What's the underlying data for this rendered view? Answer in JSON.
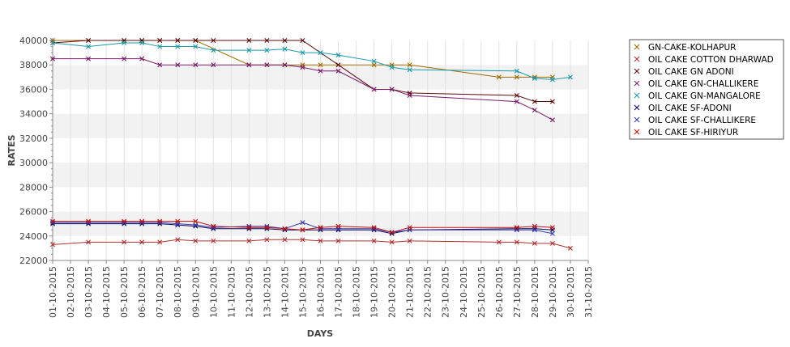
{
  "chart_data": {
    "type": "line",
    "title": "",
    "xlabel": "DAYS",
    "ylabel": "RATES",
    "ylim": [
      22000,
      40000
    ],
    "yticks": [
      22000,
      24000,
      26000,
      28000,
      30000,
      32000,
      34000,
      36000,
      38000,
      40000
    ],
    "grid": "alternating horizontal bands",
    "legend_position": "right",
    "categories": [
      "01-10-2015",
      "02-10-2015",
      "03-10-2015",
      "04-10-2015",
      "05-10-2015",
      "06-10-2015",
      "07-10-2015",
      "08-10-2015",
      "09-10-2015",
      "10-10-2015",
      "11-10-2015",
      "12-10-2015",
      "13-10-2015",
      "14-10-2015",
      "15-10-2015",
      "16-10-2015",
      "17-10-2015",
      "18-10-2015",
      "19-10-2015",
      "20-10-2015",
      "21-10-2015",
      "22-10-2015",
      "23-10-2015",
      "24-10-2015",
      "25-10-2015",
      "26-10-2015",
      "27-10-2015",
      "28-10-2015",
      "29-10-2015",
      "30-10-2015",
      "31-10-2015"
    ],
    "series": [
      {
        "name": "GN-CAKE-KOLHAPUR",
        "color": "#a06a00",
        "x": [
          "01-10-2015",
          "03-10-2015",
          "05-10-2015",
          "06-10-2015",
          "07-10-2015",
          "08-10-2015",
          "09-10-2015",
          "12-10-2015",
          "13-10-2015",
          "14-10-2015",
          "15-10-2015",
          "16-10-2015",
          "19-10-2015",
          "20-10-2015",
          "21-10-2015",
          "26-10-2015",
          "27-10-2015",
          "28-10-2015",
          "29-10-2015"
        ],
        "values": [
          40000,
          40000,
          40000,
          40000,
          40000,
          40000,
          40000,
          38000,
          38000,
          38000,
          38000,
          38000,
          38000,
          38000,
          38000,
          37000,
          37000,
          37000,
          37000
        ]
      },
      {
        "name": "OIL CAKE COTTON DHARWAD",
        "color": "#b03030",
        "x": [
          "01-10-2015",
          "03-10-2015",
          "05-10-2015",
          "06-10-2015",
          "07-10-2015",
          "08-10-2015",
          "09-10-2015",
          "10-10-2015",
          "12-10-2015",
          "13-10-2015",
          "14-10-2015",
          "15-10-2015",
          "16-10-2015",
          "17-10-2015",
          "19-10-2015",
          "20-10-2015",
          "21-10-2015",
          "26-10-2015",
          "27-10-2015",
          "28-10-2015",
          "29-10-2015",
          "30-10-2015"
        ],
        "values": [
          23300,
          23500,
          23500,
          23500,
          23500,
          23700,
          23600,
          23600,
          23600,
          23700,
          23700,
          23700,
          23600,
          23600,
          23600,
          23500,
          23600,
          23500,
          23500,
          23400,
          23400,
          23000
        ]
      },
      {
        "name": "OIL CAKE GN ADONI",
        "color": "#5a0a0a",
        "x": [
          "01-10-2015",
          "03-10-2015",
          "05-10-2015",
          "06-10-2015",
          "07-10-2015",
          "08-10-2015",
          "09-10-2015",
          "10-10-2015",
          "12-10-2015",
          "13-10-2015",
          "14-10-2015",
          "15-10-2015",
          "16-10-2015",
          "17-10-2015",
          "19-10-2015",
          "20-10-2015",
          "21-10-2015",
          "27-10-2015",
          "28-10-2015",
          "29-10-2015"
        ],
        "values": [
          39800,
          40000,
          40000,
          40000,
          40000,
          40000,
          40000,
          40000,
          40000,
          40000,
          40000,
          40000,
          39000,
          38000,
          36000,
          36000,
          35700,
          35500,
          35000,
          35000
        ]
      },
      {
        "name": "OIL CAKE GN-CHALLIKERE",
        "color": "#7a1a6a",
        "x": [
          "01-10-2015",
          "03-10-2015",
          "05-10-2015",
          "06-10-2015",
          "07-10-2015",
          "08-10-2015",
          "09-10-2015",
          "10-10-2015",
          "12-10-2015",
          "13-10-2015",
          "14-10-2015",
          "15-10-2015",
          "16-10-2015",
          "17-10-2015",
          "19-10-2015",
          "20-10-2015",
          "21-10-2015",
          "27-10-2015",
          "28-10-2015",
          "29-10-2015"
        ],
        "values": [
          38500,
          38500,
          38500,
          38500,
          38000,
          38000,
          38000,
          38000,
          38000,
          38000,
          38000,
          37800,
          37500,
          37500,
          36000,
          36000,
          35500,
          35000,
          34300,
          33500
        ]
      },
      {
        "name": "OIL CAKE GN-MANGALORE",
        "color": "#1a9aaa",
        "x": [
          "01-10-2015",
          "03-10-2015",
          "05-10-2015",
          "06-10-2015",
          "07-10-2015",
          "08-10-2015",
          "09-10-2015",
          "10-10-2015",
          "12-10-2015",
          "13-10-2015",
          "14-10-2015",
          "15-10-2015",
          "16-10-2015",
          "17-10-2015",
          "19-10-2015",
          "20-10-2015",
          "21-10-2015",
          "27-10-2015",
          "28-10-2015",
          "29-10-2015",
          "30-10-2015"
        ],
        "values": [
          39800,
          39500,
          39800,
          39800,
          39500,
          39500,
          39500,
          39200,
          39200,
          39200,
          39300,
          39000,
          39000,
          38800,
          38300,
          37800,
          37600,
          37500,
          36900,
          36800,
          37000
        ]
      },
      {
        "name": "OIL CAKE SF-ADONI",
        "color": "#0a0a5a",
        "x": [
          "01-10-2015",
          "03-10-2015",
          "05-10-2015",
          "06-10-2015",
          "07-10-2015",
          "08-10-2015",
          "09-10-2015",
          "10-10-2015",
          "12-10-2015",
          "13-10-2015",
          "14-10-2015",
          "15-10-2015",
          "16-10-2015",
          "17-10-2015",
          "19-10-2015",
          "20-10-2015",
          "21-10-2015",
          "27-10-2015",
          "28-10-2015",
          "29-10-2015"
        ],
        "values": [
          25000,
          25000,
          25000,
          25000,
          25000,
          24900,
          24800,
          24600,
          24600,
          24600,
          24500,
          24500,
          24500,
          24500,
          24500,
          24200,
          24500,
          24600,
          24600,
          24500
        ]
      },
      {
        "name": "OIL CAKE SF-CHALLIKERE",
        "color": "#3a3ab0",
        "x": [
          "01-10-2015",
          "03-10-2015",
          "05-10-2015",
          "06-10-2015",
          "07-10-2015",
          "08-10-2015",
          "09-10-2015",
          "10-10-2015",
          "12-10-2015",
          "13-10-2015",
          "14-10-2015",
          "15-10-2015",
          "16-10-2015",
          "17-10-2015",
          "19-10-2015",
          "20-10-2015",
          "21-10-2015",
          "27-10-2015",
          "28-10-2015",
          "29-10-2015"
        ],
        "values": [
          25100,
          25100,
          25100,
          25100,
          25100,
          25000,
          24900,
          24700,
          24800,
          24800,
          24600,
          25100,
          24600,
          24600,
          24600,
          24300,
          24500,
          24500,
          24500,
          24200
        ]
      },
      {
        "name": "OIL CAKE SF-HIRIYUR",
        "color": "#c01010",
        "x": [
          "01-10-2015",
          "03-10-2015",
          "05-10-2015",
          "06-10-2015",
          "07-10-2015",
          "08-10-2015",
          "09-10-2015",
          "10-10-2015",
          "12-10-2015",
          "13-10-2015",
          "14-10-2015",
          "15-10-2015",
          "16-10-2015",
          "17-10-2015",
          "19-10-2015",
          "20-10-2015",
          "21-10-2015",
          "27-10-2015",
          "28-10-2015",
          "29-10-2015"
        ],
        "values": [
          25200,
          25200,
          25200,
          25200,
          25200,
          25200,
          25200,
          24800,
          24700,
          24700,
          24600,
          24500,
          24700,
          24800,
          24700,
          24300,
          24700,
          24700,
          24800,
          24700
        ]
      }
    ]
  }
}
